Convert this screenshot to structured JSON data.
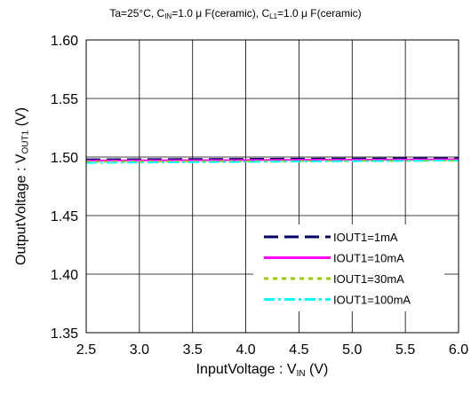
{
  "title_parts": {
    "p1": "Ta=25°C, C",
    "s1": "IN",
    "p2": "=1.0 μ F(ceramic), C",
    "s2": "L1",
    "p3": "=1.0 μ F(ceramic)"
  },
  "xlabel_parts": {
    "main": "InputVoltage : V",
    "sub": "IN",
    "tail": " (V)"
  },
  "ylabel_parts": {
    "main": "OutputVoltage : V",
    "sub": "OUT1",
    "tail": " (V)"
  },
  "chart_data": {
    "type": "line",
    "title": "Ta=25°C, CIN=1.0 μ F(ceramic), CL1=1.0 μ F(ceramic)",
    "xlabel": "InputVoltage : VIN (V)",
    "ylabel": "OutputVoltage : VOUT1 (V)",
    "xlim": [
      2.5,
      6.0
    ],
    "ylim": [
      1.35,
      1.6
    ],
    "x_ticks": [
      2.5,
      3.0,
      3.5,
      4.0,
      4.5,
      5.0,
      5.5,
      6.0
    ],
    "x_tick_labels": [
      "2.5",
      "3.0",
      "3.5",
      "4.0",
      "4.5",
      "5.0",
      "5.5",
      "6.0"
    ],
    "y_ticks": [
      1.35,
      1.4,
      1.45,
      1.5,
      1.55,
      1.6
    ],
    "y_tick_labels": [
      "1.35",
      "1.40",
      "1.45",
      "1.50",
      "1.55",
      "1.60"
    ],
    "grid": true,
    "legend_position": "bottom-right",
    "series": [
      {
        "name": "IOUT1=1mA",
        "color": "#000066",
        "dash": "long-dash",
        "x": [
          2.5,
          6.0
        ],
        "y": [
          1.498,
          1.499
        ]
      },
      {
        "name": "IOUT1=10mA",
        "color": "#ff00ff",
        "dash": "solid",
        "x": [
          2.5,
          6.0
        ],
        "y": [
          1.497,
          1.498
        ]
      },
      {
        "name": "IOUT1=30mA",
        "color": "#99cc00",
        "dash": "dotted",
        "x": [
          2.5,
          6.0
        ],
        "y": [
          1.496,
          1.497
        ]
      },
      {
        "name": "IOUT1=100mA",
        "color": "#00ffff",
        "dash": "dash-dot",
        "x": [
          2.5,
          6.0
        ],
        "y": [
          1.495,
          1.497
        ]
      }
    ]
  }
}
